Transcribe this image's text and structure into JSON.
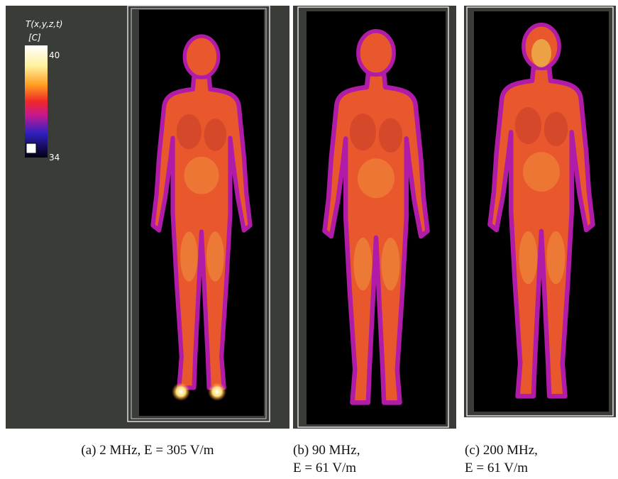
{
  "colorbar": {
    "title": "T(x,y,z,t)",
    "unit": "[C]",
    "max_label": "40",
    "min_label": "34"
  },
  "panels": [
    {
      "caption_lines": [
        "(a) 2 MHz, E = 305 V/m"
      ]
    },
    {
      "caption_lines": [
        "(b) 90 MHz,",
        "E = 61 V/m"
      ]
    },
    {
      "caption_lines": [
        "(c) 200 MHz,",
        "E = 61 V/m"
      ]
    }
  ]
}
